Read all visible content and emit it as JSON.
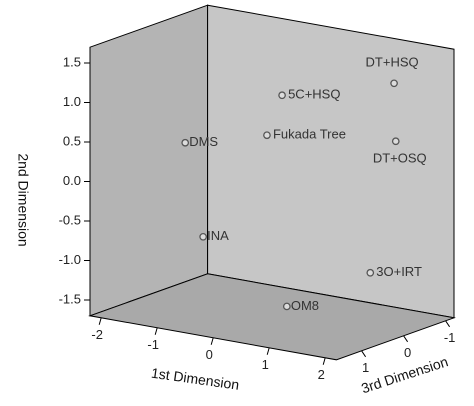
{
  "chart_data": {
    "type": "scatter3d",
    "xlabel": "1st Dimension",
    "ylabel": "2nd Dimension",
    "zlabel": "3rd Dimension",
    "labels": [
      "DMS",
      "INA",
      "OM8",
      "Fukada Tree",
      "5C+HSQ",
      "DT+HSQ",
      "DT+OSQ",
      "3O+IRT"
    ],
    "x": [
      -1.7,
      -1.38,
      0.49,
      -0.24,
      0.03,
      1.28,
      1.31,
      1.23
    ],
    "values": [
      0.25,
      -0.9,
      -1.45,
      0.53,
      1.07,
      1.19,
      0.46,
      -1.12
    ],
    "z": [
      0,
      0,
      0.5,
      0,
      0,
      -1,
      -1,
      -0.5
    ],
    "xlim": [
      -2.2,
      2.2
    ],
    "ylim": [
      -1.7,
      1.7
    ],
    "zlim": [
      -1.2,
      1.6
    ],
    "xticks": [
      -2,
      -1,
      0,
      1,
      2
    ],
    "yticks": [
      {
        "value": -1.5,
        "label": "-1.5"
      },
      {
        "value": -1,
        "label": "-1.0"
      },
      -0.5,
      {
        "value": 0,
        "label": "0.0"
      },
      0.5,
      {
        "value": 1,
        "label": "1.0"
      },
      1.5
    ],
    "zticks": [
      -1,
      0,
      1
    ],
    "color": "#dcdcdc"
  }
}
